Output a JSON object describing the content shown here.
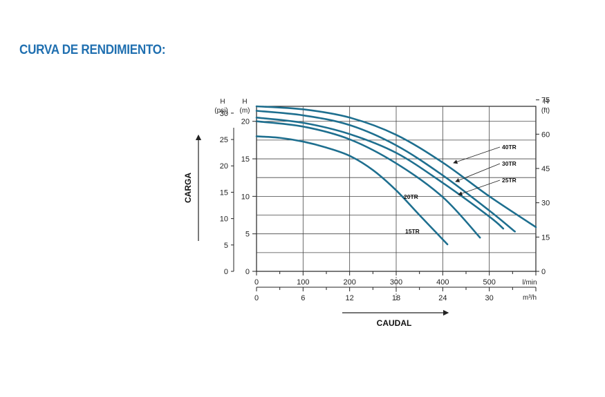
{
  "page": {
    "title": "CURVA DE RENDIMIENTO:"
  },
  "colors": {
    "title": "#1f6fb0",
    "curve": "#1e6f8f"
  },
  "chart_data": {
    "type": "line",
    "title": "",
    "xlabel": "CAUDAL",
    "ylabel": "CARGA",
    "grid": true,
    "axes": {
      "x_primary": {
        "unit": "l/min",
        "ticks": [
          "0",
          "100",
          "200",
          "300",
          "400",
          "500"
        ],
        "range": [
          0,
          600
        ]
      },
      "x_secondary": {
        "unit": "m³/h",
        "ticks": [
          "0",
          "6",
          "12",
          "18",
          "24",
          "30"
        ],
        "range": [
          0,
          36
        ]
      },
      "y_left_m": {
        "header": "H",
        "unit": "(m)",
        "ticks": [
          "0",
          "5",
          "10",
          "15",
          "20"
        ],
        "range": [
          0,
          22
        ]
      },
      "y_left_psi": {
        "header": "H",
        "unit": "(psi)",
        "ticks": [
          "0",
          "5",
          "10",
          "15",
          "20",
          "25",
          "30"
        ]
      },
      "y_right_ft": {
        "header": "H",
        "unit": "(ft)",
        "ticks": [
          "0",
          "15",
          "30",
          "45",
          "60",
          "75"
        ]
      }
    },
    "series": [
      {
        "name": "40TR",
        "x": [
          0,
          100,
          200,
          300,
          400,
          500,
          600
        ],
        "y": [
          22.0,
          21.6,
          20.5,
          18.2,
          14.5,
          10.0,
          5.9
        ]
      },
      {
        "name": "30TR",
        "x": [
          0,
          100,
          200,
          300,
          400,
          500,
          555
        ],
        "y": [
          21.4,
          20.8,
          19.5,
          16.8,
          12.8,
          8.1,
          5.3
        ]
      },
      {
        "name": "25TR",
        "x": [
          0,
          100,
          200,
          300,
          400,
          500,
          530
        ],
        "y": [
          20.5,
          19.8,
          18.3,
          15.8,
          11.8,
          7.3,
          5.7
        ]
      },
      {
        "name": "20TR",
        "x": [
          0,
          100,
          200,
          300,
          400,
          480
        ],
        "y": [
          20.0,
          19.3,
          17.6,
          14.4,
          9.9,
          4.5
        ]
      },
      {
        "name": "15TR",
        "x": [
          0,
          50,
          100,
          150,
          200,
          250,
          300,
          350,
          410
        ],
        "y": [
          18.0,
          17.8,
          17.3,
          16.5,
          15.4,
          13.5,
          10.8,
          7.5,
          3.6
        ]
      }
    ]
  }
}
